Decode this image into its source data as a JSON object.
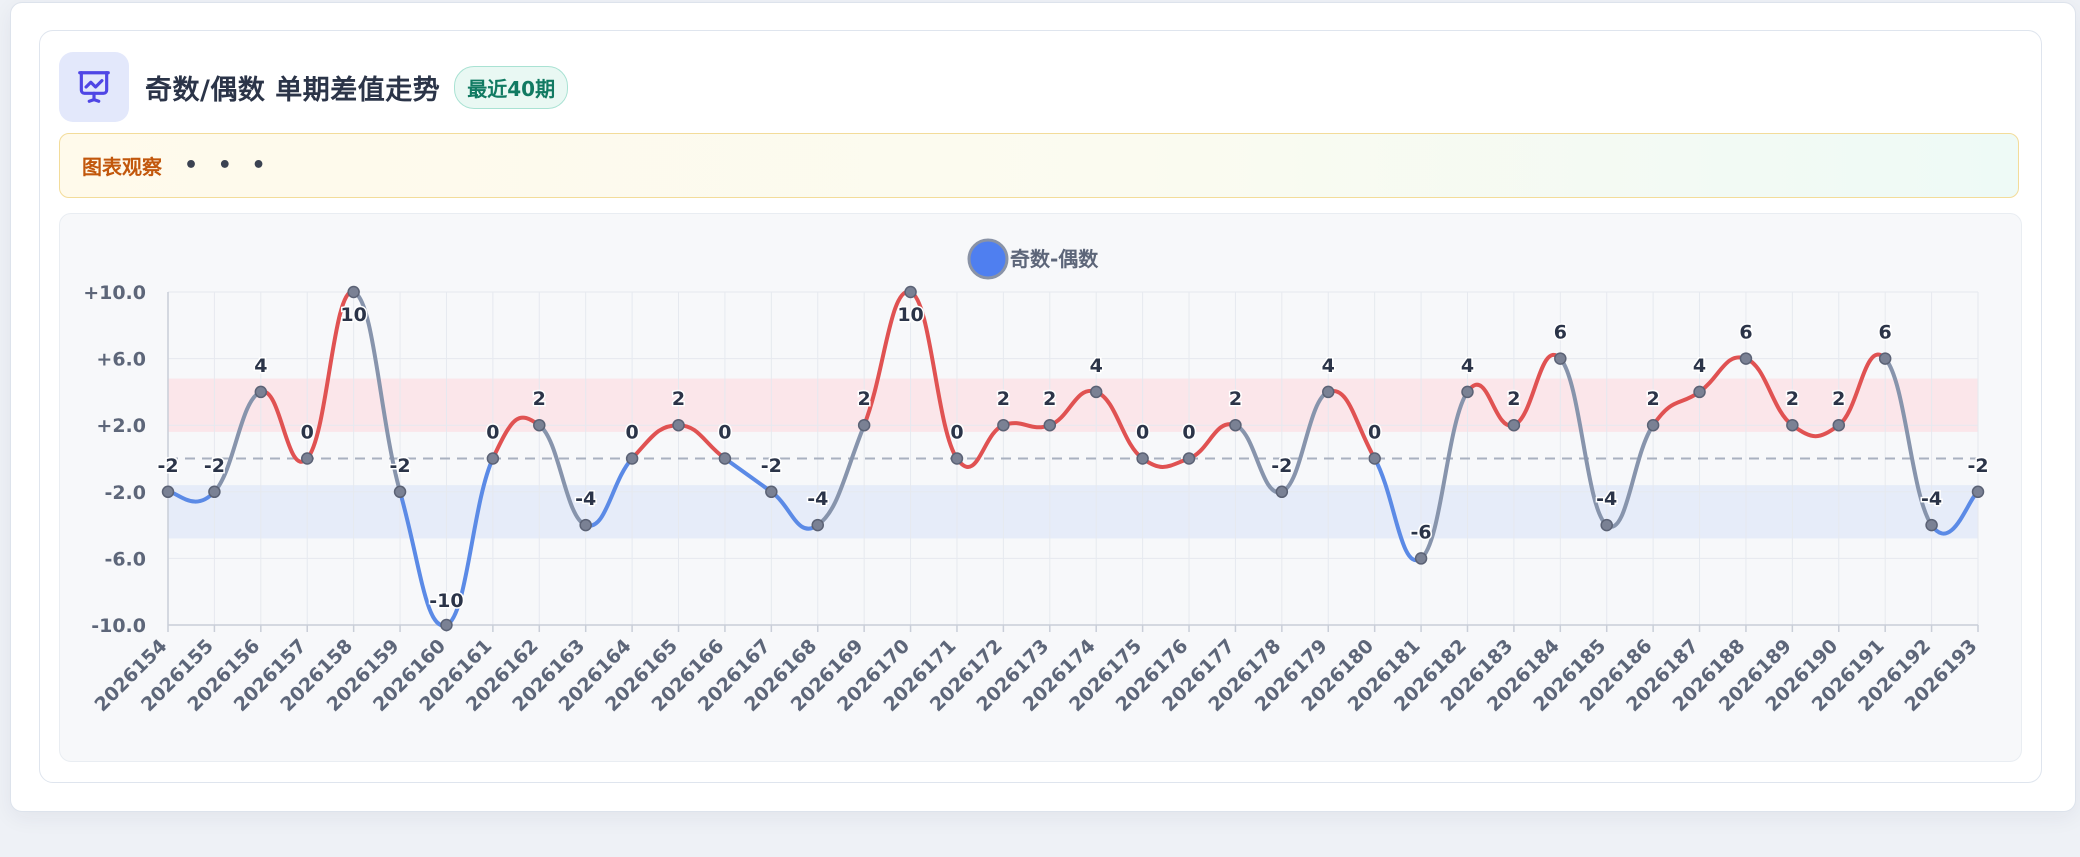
{
  "header": {
    "title": "奇数/偶数 单期差值走势",
    "badge": "最近40期",
    "icon": "presentation-chart-icon"
  },
  "observation": {
    "title": "图表观察",
    "more": "• • •"
  },
  "colors": {
    "positive": "#e05252",
    "negative": "#5b8ae6",
    "neutral": "#8794ac",
    "legend_marker": "#4f7ff0",
    "upper_band": "#fbe3e6",
    "lower_band": "#e3eaf8"
  },
  "chart_data": {
    "type": "line",
    "legend": {
      "label": "奇数-偶数",
      "position": "top-center"
    },
    "categories": [
      "2026154",
      "2026155",
      "2026156",
      "2026157",
      "2026158",
      "2026159",
      "2026160",
      "2026161",
      "2026162",
      "2026163",
      "2026164",
      "2026165",
      "2026166",
      "2026167",
      "2026168",
      "2026169",
      "2026170",
      "2026171",
      "2026172",
      "2026173",
      "2026174",
      "2026175",
      "2026176",
      "2026177",
      "2026178",
      "2026179",
      "2026180",
      "2026181",
      "2026182",
      "2026183",
      "2026184",
      "2026185",
      "2026186",
      "2026187",
      "2026188",
      "2026189",
      "2026190",
      "2026191",
      "2026192",
      "2026193"
    ],
    "series": [
      {
        "name": "奇数-偶数",
        "values": [
          -2,
          -2,
          4,
          0,
          10,
          -2,
          -10,
          0,
          2,
          -4,
          0,
          2,
          0,
          -2,
          -4,
          2,
          10,
          0,
          2,
          2,
          4,
          0,
          0,
          2,
          -2,
          4,
          0,
          -6,
          4,
          2,
          6,
          -4,
          2,
          4,
          6,
          2,
          2,
          6,
          -4,
          -2
        ]
      }
    ],
    "data_labels": [
      "-2",
      "-2",
      "4",
      "0",
      "10",
      "-2",
      "-10",
      "0",
      "2",
      "-4",
      "0",
      "2",
      "0",
      "-2",
      "-4",
      "2",
      "10",
      "0",
      "2",
      "2",
      "4",
      "0",
      "0",
      "2",
      "-2",
      "4",
      "0",
      "-6",
      "4",
      "2",
      "6",
      "-4",
      "2",
      "4",
      "6",
      "2",
      "2",
      "6",
      "-4",
      "-2"
    ],
    "y_ticks": [
      "+10.0",
      "+6.0",
      "+2.0",
      "-2.0",
      "-6.0",
      "-10.0"
    ],
    "y_tick_values": [
      10,
      6,
      2,
      -2,
      -6,
      -10
    ],
    "ylim": [
      -10,
      10
    ],
    "reference_line": 0,
    "upper_band": [
      1.6,
      4.8
    ],
    "lower_band": [
      -4.8,
      -1.6
    ],
    "grid": true
  }
}
